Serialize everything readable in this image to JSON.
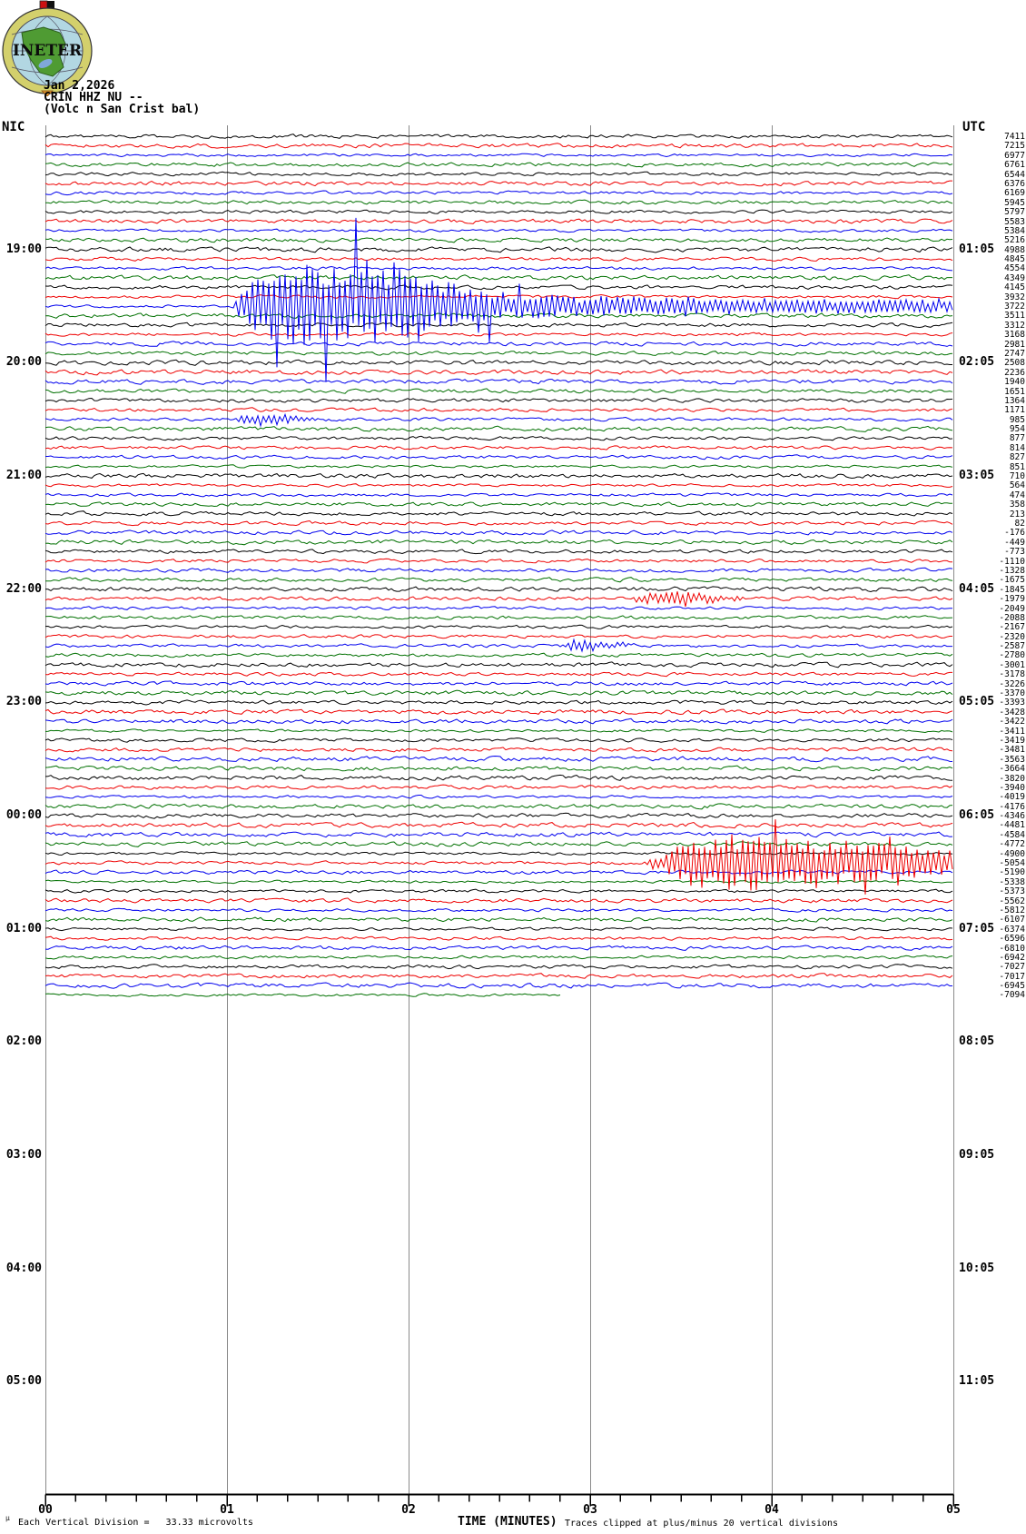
{
  "header": {
    "logo_text": "INETER",
    "date": "Jan 2,2026",
    "station": "CRIN HHZ NU --",
    "location": "(Volc n San Crist bal)",
    "left_tz": "NIC",
    "right_tz": "UTC"
  },
  "footer": {
    "micro_mark": "µ",
    "scale_note": "Each Vertical Division =   33.33 microvolts",
    "axis_title": "TIME (MINUTES)",
    "clip_note": "Traces clipped at plus/minus 20 vertical divisions"
  },
  "chart_data": {
    "type": "line",
    "subtype": "helicorder-seismogram",
    "title": "CRIN HHZ NU -- (Volc n San Crist bal) Jan 2,2026",
    "xlabel": "TIME (MINUTES)",
    "x_ticks": [
      "00",
      "01",
      "02",
      "03",
      "04",
      "05"
    ],
    "minutes_per_line": 5,
    "minor_ticks_per_minute": 6,
    "rows": 92,
    "last_row_end_minute": 2.84,
    "color_cycle": [
      "#000000",
      "#ee0000",
      "#0000ee",
      "#007000"
    ],
    "grid_color": "#8a8a8a",
    "axis_color": "#000000",
    "left_time_labels": [
      {
        "row": 13,
        "text": "19:00"
      },
      {
        "row": 25,
        "text": "20:00"
      },
      {
        "row": 37,
        "text": "21:00"
      },
      {
        "row": 49,
        "text": "22:00"
      },
      {
        "row": 61,
        "text": "23:00"
      },
      {
        "row": 73,
        "text": "00:00"
      },
      {
        "row": 85,
        "text": "01:00"
      },
      {
        "row": 97,
        "text": "02:00"
      },
      {
        "row": 109,
        "text": "03:00"
      },
      {
        "row": 121,
        "text": "04:00"
      },
      {
        "row": 133,
        "text": "05:00"
      }
    ],
    "right_time_labels": [
      {
        "row": 13,
        "text": "01:05"
      },
      {
        "row": 25,
        "text": "02:05"
      },
      {
        "row": 37,
        "text": "03:05"
      },
      {
        "row": 49,
        "text": "04:05"
      },
      {
        "row": 61,
        "text": "05:05"
      },
      {
        "row": 73,
        "text": "06:05"
      },
      {
        "row": 85,
        "text": "07:05"
      },
      {
        "row": 97,
        "text": "08:05"
      },
      {
        "row": 109,
        "text": "09:05"
      },
      {
        "row": 121,
        "text": "10:05"
      },
      {
        "row": 133,
        "text": "11:05"
      }
    ],
    "row_offset_values": [
      7411,
      7215,
      6977,
      6761,
      6544,
      6376,
      6169,
      5945,
      5797,
      5583,
      5384,
      5216,
      4988,
      4845,
      4554,
      4349,
      4145,
      3932,
      3722,
      3511,
      3312,
      3168,
      2981,
      2747,
      2508,
      2236,
      1940,
      1651,
      1364,
      1171,
      985,
      954,
      877,
      814,
      827,
      851,
      710,
      564,
      474,
      358,
      213,
      82,
      -176,
      -449,
      -773,
      -1110,
      -1328,
      -1675,
      -1845,
      -1979,
      -2049,
      -2088,
      -2167,
      -2320,
      -2587,
      -2780,
      -3001,
      -3178,
      -3226,
      -3370,
      -3393,
      -3428,
      -3422,
      -3411,
      -3419,
      -3481,
      -3563,
      -3664,
      -3820,
      -3940,
      -4019,
      -4176,
      -4346,
      -4481,
      -4584,
      -4772,
      -4900,
      -5054,
      -5190,
      -5338,
      -5373,
      -5562,
      -5812,
      -6107,
      -6374,
      -6596,
      -6810,
      -6942,
      -7027,
      -7017,
      -6945,
      -7094
    ],
    "events": [
      {
        "row": 19,
        "color": "blue",
        "description": "large clipped earthquake starting ~min 1.0",
        "keyframes": [
          [
            1.03,
            0
          ],
          [
            1.1,
            22
          ],
          [
            1.22,
            46
          ],
          [
            1.5,
            46
          ],
          [
            1.75,
            40
          ],
          [
            2.05,
            42
          ],
          [
            2.3,
            20
          ],
          [
            2.6,
            13
          ],
          [
            3.2,
            10
          ],
          [
            4.0,
            8
          ],
          [
            5.0,
            7
          ]
        ],
        "spike_prob": 0.055,
        "spike_mul": 2.5
      },
      {
        "row": 31,
        "color": "blue",
        "description": "small aftershock burst",
        "keyframes": [
          [
            1.03,
            0
          ],
          [
            1.08,
            6
          ],
          [
            1.25,
            7
          ],
          [
            1.45,
            2
          ],
          [
            1.6,
            0
          ]
        ],
        "spike_prob": 0.0,
        "spike_mul": 1.0
      },
      {
        "row": 50,
        "color": "red",
        "description": "moderate burst",
        "keyframes": [
          [
            3.22,
            0
          ],
          [
            3.3,
            6
          ],
          [
            3.5,
            8
          ],
          [
            3.7,
            4
          ],
          [
            3.9,
            0
          ]
        ],
        "spike_prob": 0.0,
        "spike_mul": 1.0
      },
      {
        "row": 55,
        "color": "blue",
        "description": "small burst",
        "keyframes": [
          [
            2.82,
            0
          ],
          [
            2.9,
            6
          ],
          [
            3.05,
            5
          ],
          [
            3.3,
            0
          ]
        ],
        "spike_prob": 0.0,
        "spike_mul": 1.0
      },
      {
        "row": 78,
        "color": "red",
        "description": "second large clipped event starting ~min 3.3",
        "keyframes": [
          [
            3.28,
            0
          ],
          [
            3.4,
            10
          ],
          [
            3.55,
            26
          ],
          [
            3.7,
            34
          ],
          [
            3.9,
            30
          ],
          [
            4.2,
            26
          ],
          [
            4.55,
            22
          ],
          [
            5.0,
            13
          ]
        ],
        "spike_prob": 0.05,
        "spike_mul": 2.8
      }
    ]
  }
}
